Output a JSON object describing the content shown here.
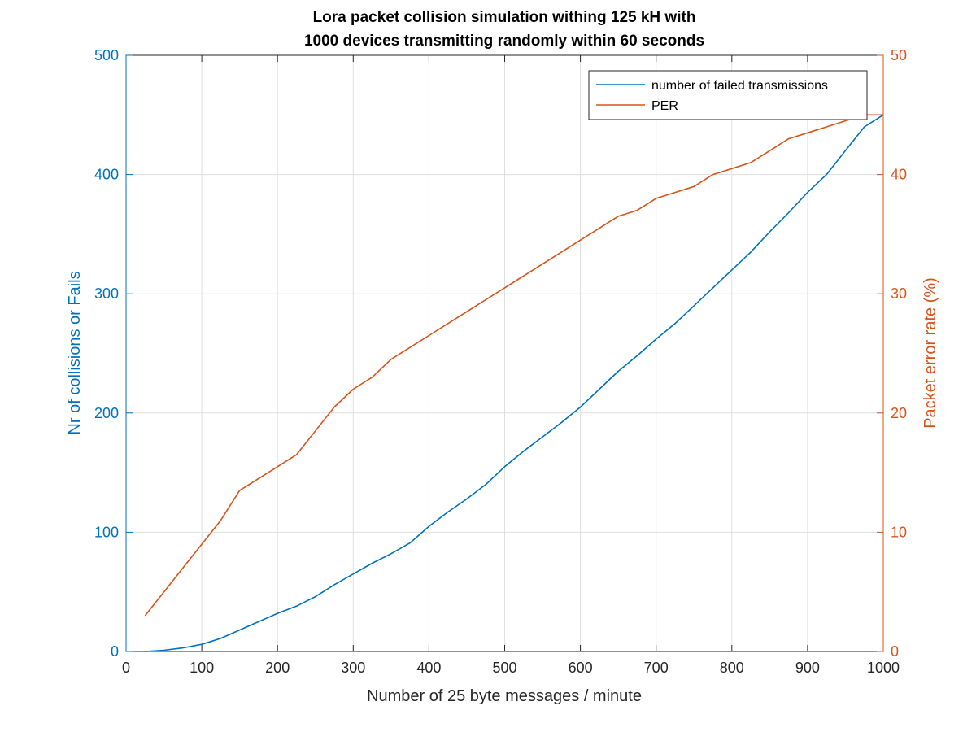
{
  "chart_data": {
    "type": "line",
    "title": [
      "Lora packet collision simulation withing 125 kH with",
      "1000 devices transmitting randomly within 60 seconds"
    ],
    "xlabel": "Number of 25 byte  messages / minute",
    "ylabel_left": "Nr of collisions or Fails",
    "ylabel_right": "Packet error rate (%)",
    "xlim": [
      0,
      1000
    ],
    "ylim_left": [
      0,
      500
    ],
    "ylim_right": [
      0,
      50
    ],
    "xticks": [
      0,
      100,
      200,
      300,
      400,
      500,
      600,
      700,
      800,
      900,
      1000
    ],
    "yticks_left": [
      0,
      100,
      200,
      300,
      400,
      500
    ],
    "yticks_right": [
      0,
      10,
      20,
      30,
      40,
      50
    ],
    "grid": true,
    "legend_position": "top-right",
    "colors": {
      "left": "#0072BD",
      "right": "#D95319"
    },
    "series": [
      {
        "name": "number of failed transmissions",
        "axis": "left",
        "x": [
          25,
          50,
          75,
          100,
          125,
          150,
          175,
          200,
          225,
          250,
          275,
          300,
          325,
          350,
          375,
          400,
          425,
          450,
          475,
          500,
          525,
          550,
          575,
          600,
          625,
          650,
          675,
          700,
          725,
          750,
          775,
          800,
          825,
          850,
          875,
          900,
          925,
          950,
          975,
          1000
        ],
        "y": [
          0,
          1,
          3,
          6,
          11,
          18,
          25,
          32,
          38,
          46,
          56,
          65,
          74,
          82,
          91,
          105,
          117,
          128,
          140,
          155,
          168,
          180,
          192,
          205,
          220,
          235,
          248,
          262,
          275,
          290,
          305,
          320,
          335,
          352,
          368,
          385,
          400,
          420,
          440,
          450
        ]
      },
      {
        "name": "PER",
        "axis": "right",
        "x": [
          25,
          50,
          75,
          100,
          125,
          150,
          175,
          200,
          225,
          250,
          275,
          300,
          325,
          350,
          375,
          400,
          425,
          450,
          475,
          500,
          525,
          550,
          575,
          600,
          625,
          650,
          675,
          700,
          725,
          750,
          775,
          800,
          825,
          850,
          875,
          900,
          925,
          950,
          975,
          1000
        ],
        "y": [
          3,
          5,
          7,
          9,
          11,
          13.5,
          14.5,
          15.5,
          16.5,
          18.5,
          20.5,
          22,
          23,
          24.5,
          25.5,
          26.5,
          27.5,
          28.5,
          29.5,
          30.5,
          31.5,
          32.5,
          33.5,
          34.5,
          35.5,
          36.5,
          37,
          38,
          38.5,
          39,
          40,
          40.5,
          41,
          42,
          43,
          43.5,
          44,
          44.5,
          45,
          45
        ]
      }
    ]
  }
}
